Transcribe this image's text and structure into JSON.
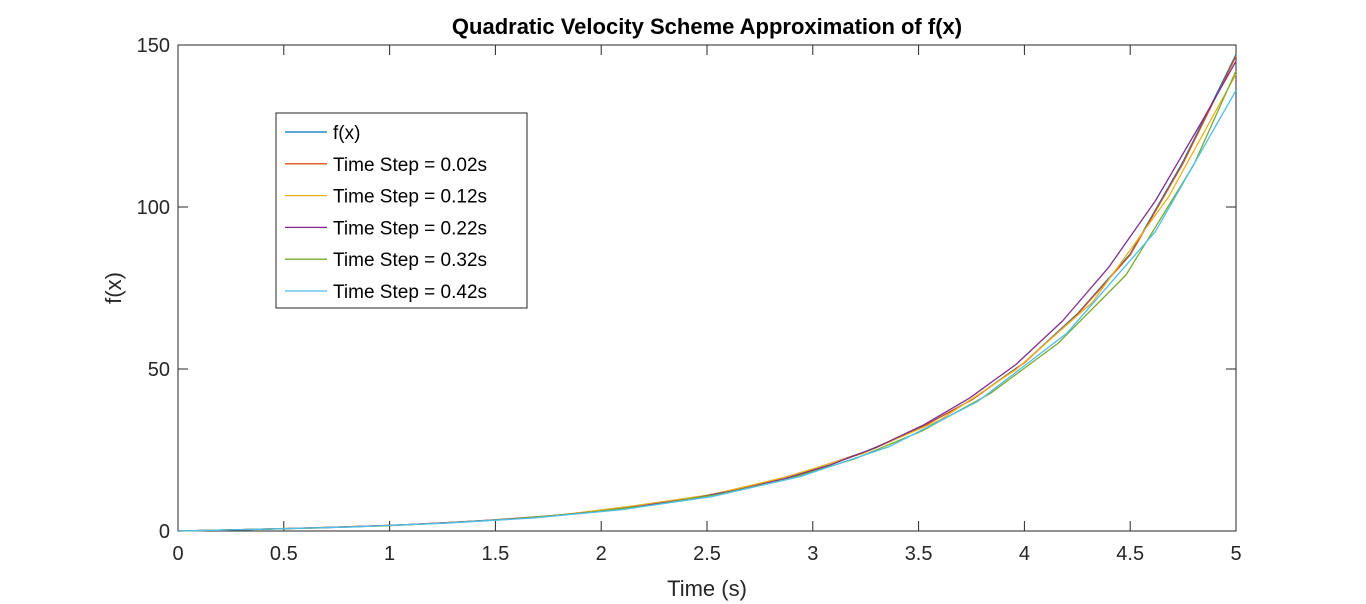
{
  "chart_data": {
    "type": "line",
    "title": "Quadratic Velocity Scheme Approximation of f(x)",
    "xlabel": "Time (s)",
    "ylabel": "f(x)",
    "xlim": [
      0,
      5
    ],
    "ylim": [
      0,
      150
    ],
    "xticks": [
      "0",
      "0.5",
      "1",
      "1.5",
      "2",
      "2.5",
      "3",
      "3.5",
      "4",
      "4.5",
      "5"
    ],
    "xtick_values": [
      0,
      0.5,
      1,
      1.5,
      2,
      2.5,
      3,
      3.5,
      4,
      4.5,
      5
    ],
    "yticks": [
      "0",
      "50",
      "100",
      "150"
    ],
    "ytick_values": [
      0,
      50,
      100,
      150
    ],
    "grid": false,
    "box": true,
    "legend_position": "upper-left",
    "series": [
      {
        "name": "f(x)",
        "color": "#0072BD",
        "x": [
          0,
          0.25,
          0.5,
          0.75,
          1,
          1.25,
          1.5,
          1.75,
          2,
          2.25,
          2.5,
          2.75,
          3,
          3.25,
          3.5,
          3.75,
          4,
          4.25,
          4.5,
          4.75,
          5
        ],
        "y": [
          0,
          0.35,
          0.75,
          1.2,
          1.7,
          2.5,
          3.4,
          4.6,
          6.2,
          8.3,
          11.0,
          14.4,
          19.0,
          24.5,
          31.5,
          40.5,
          52.0,
          67.0,
          85.5,
          114.0,
          147.0
        ]
      },
      {
        "name": "Time Step = 0.02s",
        "color": "#D95319",
        "x": [
          0,
          0.25,
          0.5,
          0.75,
          1,
          1.25,
          1.5,
          1.75,
          2,
          2.25,
          2.5,
          2.75,
          3,
          3.25,
          3.5,
          3.75,
          4,
          4.25,
          4.5,
          4.75,
          5
        ],
        "y": [
          0,
          0.35,
          0.75,
          1.2,
          1.7,
          2.5,
          3.4,
          4.6,
          6.2,
          8.3,
          11.0,
          14.4,
          19.0,
          24.5,
          31.5,
          40.4,
          51.9,
          66.8,
          85.2,
          113.5,
          146.5
        ]
      },
      {
        "name": "Time Step = 0.12s",
        "color": "#EDB120",
        "x": [
          0,
          0.36,
          0.72,
          1.08,
          1.44,
          1.8,
          2.16,
          2.52,
          2.88,
          3.24,
          3.6,
          3.96,
          4.32,
          4.68,
          5
        ],
        "y": [
          0,
          0.5,
          1.15,
          1.9,
          3.2,
          4.9,
          7.8,
          11.2,
          16.8,
          24.0,
          34.2,
          49.8,
          70.5,
          103.0,
          141.0
        ]
      },
      {
        "name": "Time Step = 0.22s",
        "color": "#7E2F8E",
        "x": [
          0,
          0.22,
          0.44,
          0.66,
          0.88,
          1.1,
          1.32,
          1.54,
          1.76,
          1.98,
          2.2,
          2.42,
          2.64,
          2.86,
          3.08,
          3.3,
          3.52,
          3.74,
          3.96,
          4.18,
          4.4,
          4.62,
          4.84,
          5
        ],
        "y": [
          0,
          0.3,
          0.62,
          1.0,
          1.45,
          2.0,
          2.75,
          3.6,
          4.7,
          6.0,
          7.8,
          9.9,
          12.6,
          16.0,
          20.3,
          25.8,
          32.6,
          41.0,
          51.4,
          64.8,
          81.5,
          102.0,
          126.5,
          145.0
        ]
      },
      {
        "name": "Time Step = 0.32s",
        "color": "#77AC30",
        "x": [
          0,
          0.32,
          0.64,
          0.96,
          1.28,
          1.6,
          1.92,
          2.24,
          2.56,
          2.88,
          3.2,
          3.52,
          3.84,
          4.16,
          4.48,
          4.8,
          5
        ],
        "y": [
          0,
          0.45,
          0.9,
          1.55,
          2.5,
          3.8,
          5.6,
          8.0,
          11.4,
          16.0,
          22.3,
          31.0,
          42.5,
          58.0,
          79.0,
          113.0,
          142.0
        ]
      },
      {
        "name": "Time Step = 0.42s",
        "color": "#4DBEEE",
        "x": [
          0,
          0.42,
          0.84,
          1.26,
          1.68,
          2.1,
          2.52,
          2.94,
          3.36,
          3.78,
          4.2,
          4.62,
          5
        ],
        "y": [
          0,
          0.6,
          1.3,
          2.4,
          4.0,
          6.6,
          10.6,
          16.8,
          26.0,
          40.0,
          61.0,
          92.5,
          136.0
        ]
      }
    ]
  }
}
